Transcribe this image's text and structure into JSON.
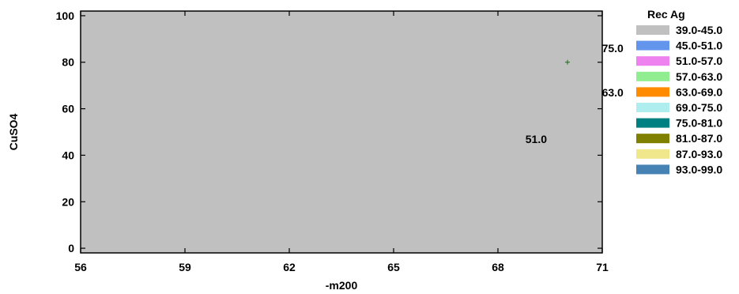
{
  "chart_data": {
    "type": "contour",
    "title": "",
    "xlabel": "-m200",
    "ylabel": "CuSO4",
    "xlim": [
      56,
      71
    ],
    "ylim": [
      -2,
      102
    ],
    "x_ticks": [
      {
        "value": 56,
        "label": "56"
      },
      {
        "value": 59,
        "label": "59"
      },
      {
        "value": 62,
        "label": "62"
      },
      {
        "value": 65,
        "label": "65"
      },
      {
        "value": 68,
        "label": "68"
      },
      {
        "value": 71,
        "label": "71"
      }
    ],
    "y_ticks": [
      {
        "value": 0,
        "label": "0"
      },
      {
        "value": 20,
        "label": "20"
      },
      {
        "value": 40,
        "label": "40"
      },
      {
        "value": 60,
        "label": "60"
      },
      {
        "value": 80,
        "label": "80"
      },
      {
        "value": 100,
        "label": "100"
      }
    ],
    "legend": {
      "title": "Rec Ag",
      "placement": "right",
      "entries": [
        {
          "label": "39.0-45.0",
          "color": "#c0c0c0",
          "min": 39,
          "max": 45
        },
        {
          "label": "45.0-51.0",
          "color": "#6495ed",
          "min": 45,
          "max": 51
        },
        {
          "label": "51.0-57.0",
          "color": "#ee82ee",
          "min": 51,
          "max": 57
        },
        {
          "label": "57.0-63.0",
          "color": "#90ee90",
          "min": 57,
          "max": 63
        },
        {
          "label": "63.0-69.0",
          "color": "#ff8c00",
          "min": 63,
          "max": 69
        },
        {
          "label": "69.0-75.0",
          "color": "#afeeee",
          "min": 69,
          "max": 75
        },
        {
          "label": "75.0-81.0",
          "color": "#008080",
          "min": 75,
          "max": 81
        },
        {
          "label": "81.0-87.0",
          "color": "#808000",
          "min": 81,
          "max": 87
        },
        {
          "label": "87.0-93.0",
          "color": "#f0e68c",
          "min": 87,
          "max": 93
        },
        {
          "label": "93.0-99.0",
          "color": "#4682b4",
          "min": 93,
          "max": 99
        }
      ]
    },
    "contour_labels": [
      {
        "label": "51.0",
        "x": 69.1,
        "y": 47
      },
      {
        "label": "63.0",
        "x": 71.3,
        "y": 67
      },
      {
        "label": "75.0",
        "x": 71.3,
        "y": 86
      }
    ],
    "surface_model": {
      "center_x": 59.5,
      "center_y": 48,
      "coef_x": 0.385,
      "coef_y": 0.0122,
      "min_value": 39
    },
    "grid": false
  }
}
